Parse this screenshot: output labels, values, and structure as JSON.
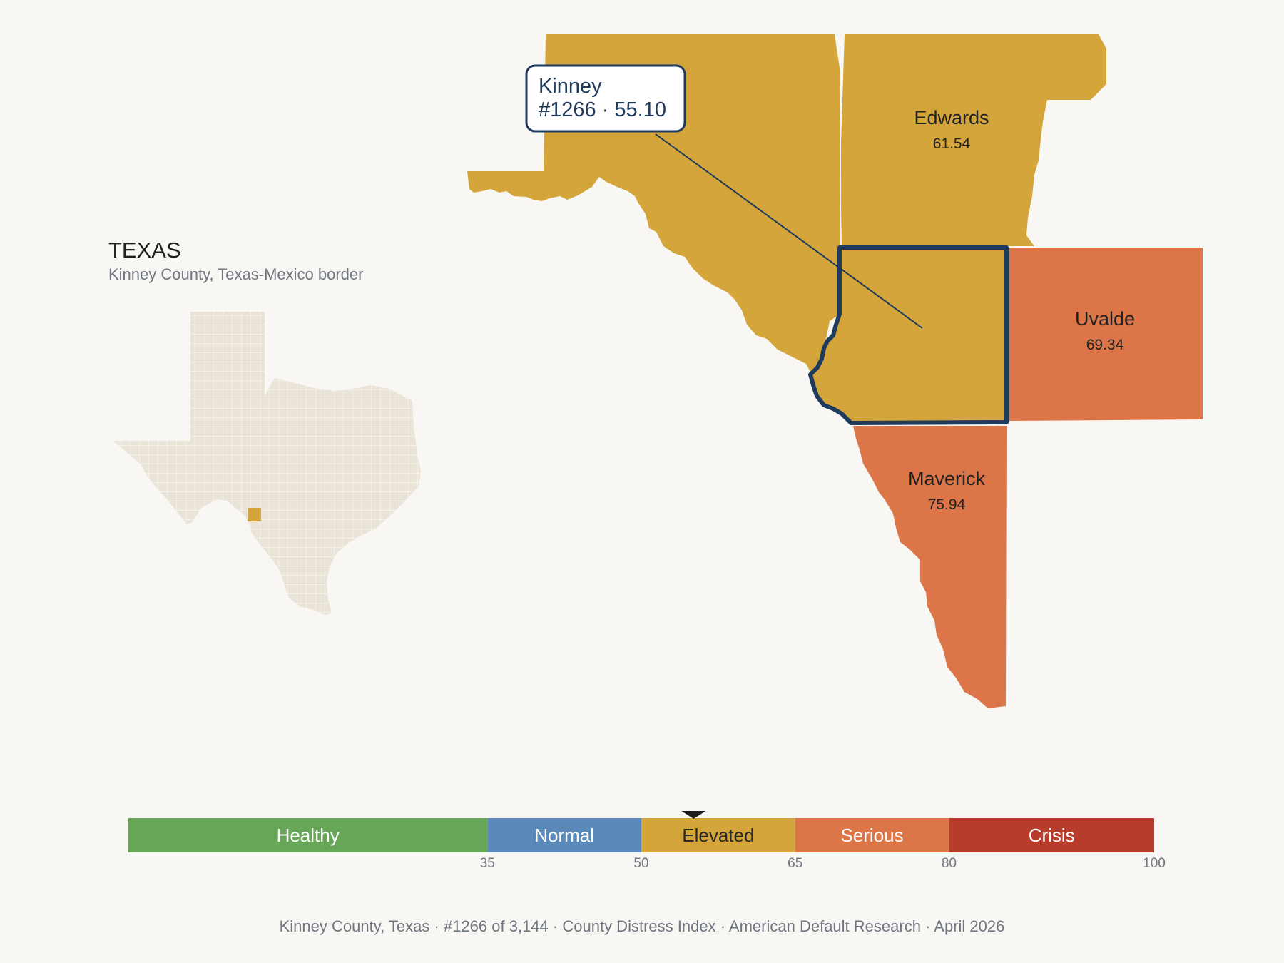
{
  "state": {
    "name": "TEXAS",
    "subtitle": "Kinney County, Texas-Mexico border"
  },
  "colors": {
    "background": "#f9f7f4",
    "elevated": "#d3a53b",
    "serious": "#dc7649",
    "focus_outline": "#1e3a5c",
    "inset_fill": "#e9e3d8",
    "inset_highlight": "#d3a53b"
  },
  "focus_county": {
    "name": "Kinney",
    "rank_value": "#1266 · 55.10"
  },
  "counties": [
    {
      "name": "Edwards",
      "value": "61.54",
      "category": "Elevated"
    },
    {
      "name": "Uvalde",
      "value": "69.34",
      "category": "Serious"
    },
    {
      "name": "Maverick",
      "value": "75.94",
      "category": "Serious"
    }
  ],
  "legend": {
    "categories": [
      {
        "label": "Healthy",
        "from": 0,
        "to": 35,
        "color": "#67a657"
      },
      {
        "label": "Normal",
        "from": 35,
        "to": 50,
        "color": "#5b8aba"
      },
      {
        "label": "Elevated",
        "from": 50,
        "to": 65,
        "color": "#d3a53b"
      },
      {
        "label": "Serious",
        "from": 65,
        "to": 80,
        "color": "#dc7649"
      },
      {
        "label": "Crisis",
        "from": 80,
        "to": 100,
        "color": "#b83c2b"
      }
    ],
    "ticks": [
      "35",
      "50",
      "65",
      "80",
      "100"
    ],
    "marker_value": 55.1
  },
  "footer": {
    "county": "Kinney County, Texas",
    "rank": "#1266 of 3,144",
    "index": "County Distress Index",
    "source": "American Default Research",
    "date": "April 2026"
  }
}
